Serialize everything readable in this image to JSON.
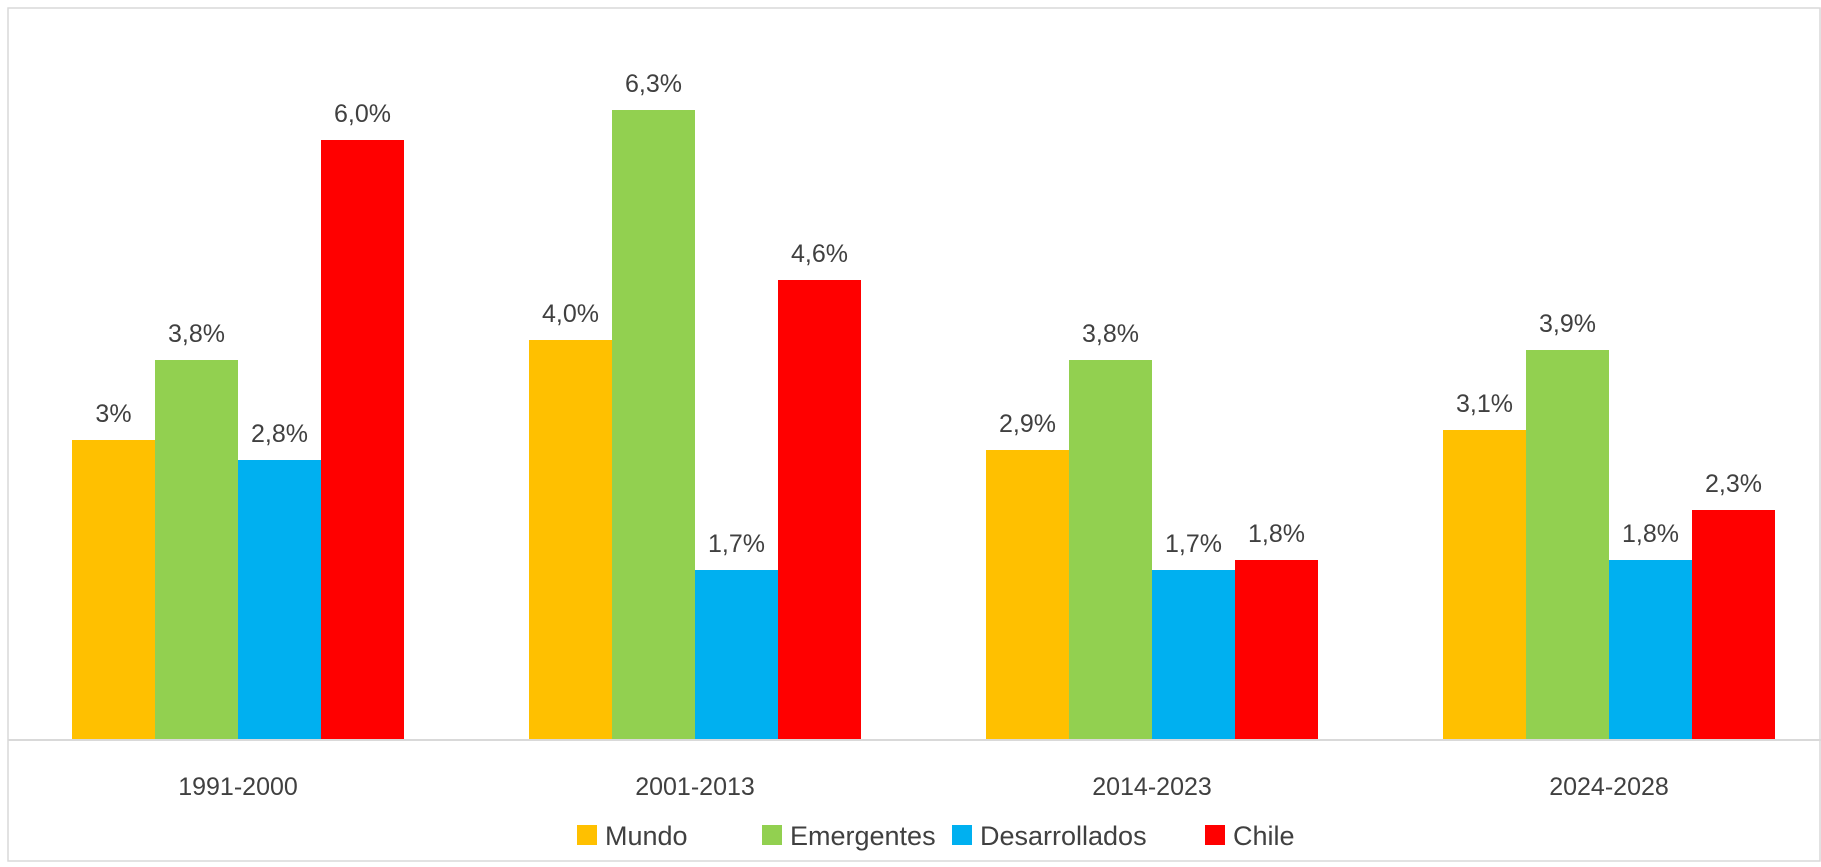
{
  "chart_data": {
    "type": "bar",
    "categories": [
      "1991-2000",
      "2001-2013",
      "2014-2023",
      "2024-2028"
    ],
    "series": [
      {
        "name": "Mundo",
        "color": "#FFC000",
        "values": [
          3.0,
          4.0,
          2.9,
          3.1
        ],
        "labels": [
          "3%",
          "4,0%",
          "2,9%",
          "3,1%"
        ]
      },
      {
        "name": "Emergentes",
        "color": "#92D050",
        "values": [
          3.8,
          6.3,
          3.8,
          3.9
        ],
        "labels": [
          "3,8%",
          "6,3%",
          "3,8%",
          "3,9%"
        ]
      },
      {
        "name": "Desarrollados",
        "color": "#00B0F0",
        "values": [
          2.8,
          1.7,
          1.7,
          1.8
        ],
        "labels": [
          "2,8%",
          "1,7%",
          "1,7%",
          "1,8%"
        ]
      },
      {
        "name": "Chile",
        "color": "#FF0000",
        "values": [
          6.0,
          4.6,
          1.8,
          2.3
        ],
        "labels": [
          "6,0%",
          "4,6%",
          "1,8%",
          "2,3%"
        ]
      }
    ],
    "ylim": [
      0,
      7
    ],
    "grid": false,
    "legend_position": "bottom"
  }
}
